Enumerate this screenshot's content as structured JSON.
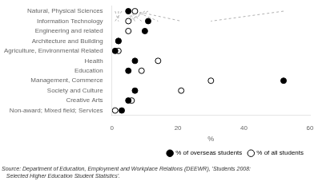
{
  "chart_data": {
    "type": "dot",
    "orientation": "horizontal",
    "categories": [
      "Natural, Physical Sciences",
      "Information Technology",
      "Engineering and related",
      "Architecture and Building",
      "Agriculture, Environmental Related",
      "Health",
      "Education",
      "Management, Commerce",
      "Society and Culture",
      "Creative Arts",
      "Non-award; Mixed field; Services"
    ],
    "series": [
      {
        "name": "% of overseas students",
        "color": "#000000",
        "marker": "filled",
        "values": [
          5,
          11,
          10,
          2,
          1,
          7,
          5,
          52,
          7,
          5,
          3
        ]
      },
      {
        "name": "% of all students",
        "color": "#000000",
        "marker": "open",
        "values": [
          7,
          5,
          5,
          2,
          2,
          14,
          9,
          30,
          21,
          6,
          1
        ]
      }
    ],
    "color": "#b0b0b0",
    "line_style": "dashed",
    "xlabel": "%",
    "xlim": [
      0,
      60
    ],
    "xticks": [
      0,
      20,
      40,
      60
    ],
    "grid": false,
    "legend": "lower right",
    "annotation": "Source: Department of Education, Employment and Workplace Relations (DEEWR), 'Students 2008:\n   Selected Higher Education Student Statistics'."
  }
}
